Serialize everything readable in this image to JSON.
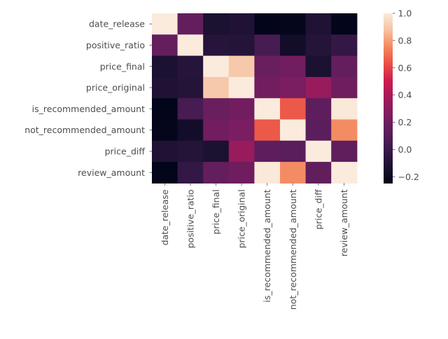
{
  "chart_data": {
    "type": "heatmap",
    "title": "",
    "xlabel": "",
    "ylabel": "",
    "rows": [
      "date_release",
      "positive_ratio",
      "price_final",
      "price_original",
      "is_recommended_amount",
      "not_recommended_amount",
      "price_diff",
      "review_amount"
    ],
    "columns": [
      "date_release",
      "positive_ratio",
      "price_final",
      "price_original",
      "is_recommended_amount",
      "not_recommended_amount",
      "price_diff",
      "review_amount"
    ],
    "values": [
      [
        1.0,
        0.16,
        -0.13,
        -0.11,
        -0.25,
        -0.24,
        -0.11,
        -0.25
      ],
      [
        0.16,
        1.0,
        -0.08,
        -0.09,
        0.05,
        -0.17,
        -0.09,
        -0.03
      ],
      [
        -0.13,
        -0.08,
        1.0,
        0.9,
        0.18,
        0.21,
        -0.13,
        0.16
      ],
      [
        -0.11,
        -0.09,
        0.9,
        1.0,
        0.21,
        0.24,
        0.34,
        0.2
      ],
      [
        -0.25,
        0.05,
        0.18,
        0.21,
        1.0,
        0.65,
        0.14,
        0.99
      ],
      [
        -0.24,
        -0.17,
        0.21,
        0.24,
        0.65,
        1.0,
        0.13,
        0.76
      ],
      [
        -0.11,
        -0.09,
        -0.13,
        0.34,
        0.14,
        0.13,
        1.0,
        0.15
      ],
      [
        -0.25,
        -0.03,
        0.16,
        0.2,
        0.99,
        0.76,
        0.15,
        1.0
      ]
    ],
    "colorbar": {
      "vmin": -0.25,
      "vmax": 1.0,
      "ticks": [
        -0.2,
        0.0,
        0.2,
        0.4,
        0.6,
        0.8,
        1.0
      ],
      "tick_labels": [
        "−0.2",
        "0.0",
        "0.2",
        "0.4",
        "0.6",
        "0.8",
        "1.0"
      ]
    },
    "colormap": {
      "name": "rocket",
      "stops": [
        [
          0.0,
          "#03051a"
        ],
        [
          0.1,
          "#1c1131"
        ],
        [
          0.2,
          "#3a1a4b"
        ],
        [
          0.3,
          "#5a1e5c"
        ],
        [
          0.4,
          "#7d1d61"
        ],
        [
          0.5,
          "#a11a5b"
        ],
        [
          0.6,
          "#cb1b4f"
        ],
        [
          0.7,
          "#ea4d44"
        ],
        [
          0.8,
          "#f4875e"
        ],
        [
          0.9,
          "#f6c19f"
        ],
        [
          1.0,
          "#faebdd"
        ]
      ]
    }
  }
}
